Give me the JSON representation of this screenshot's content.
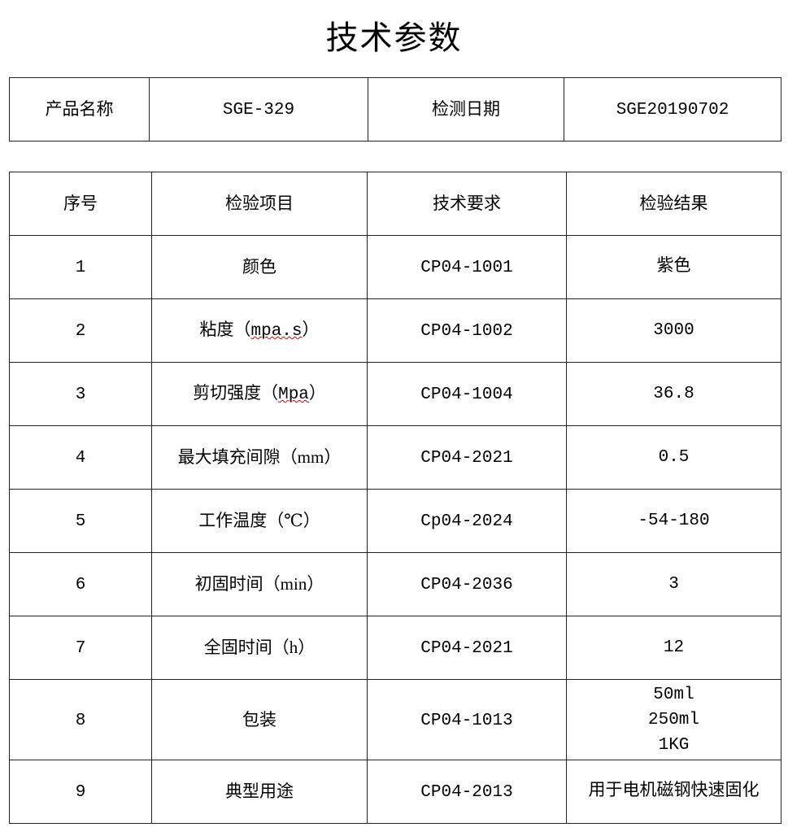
{
  "title": "技术参数",
  "info": {
    "product_name_label": "产品名称",
    "product_name_value": "SGE-329",
    "test_date_label": "检测日期",
    "test_date_value": "SGE20190702"
  },
  "spec": {
    "headers": [
      "序号",
      "检验项目",
      "技术要求",
      "检验结果"
    ],
    "rows": [
      {
        "no": "1",
        "item": "颜色",
        "item_unit": "",
        "req": "CP04-1001",
        "result": [
          "紫色"
        ]
      },
      {
        "no": "2",
        "item": "粘度（",
        "item_unit": "mpa.s",
        "item_close": "）",
        "req": "CP04-1002",
        "result": [
          "3000"
        ]
      },
      {
        "no": "3",
        "item": "剪切强度（",
        "item_unit": "Mpa",
        "item_close": "）",
        "req": "CP04-1004",
        "result": [
          "36.8"
        ]
      },
      {
        "no": "4",
        "item": "最大填充间隙（mm）",
        "item_unit": "",
        "req": "CP04-2021",
        "result": [
          "0.5"
        ]
      },
      {
        "no": "5",
        "item": "工作温度（℃）",
        "item_unit": "",
        "req": "Cp04-2024",
        "result": [
          "-54-180"
        ]
      },
      {
        "no": "6",
        "item": "初固时间（min）",
        "item_unit": "",
        "req": "CP04-2036",
        "result": [
          "3"
        ]
      },
      {
        "no": "7",
        "item": "全固时间（h）",
        "item_unit": "",
        "req": "CP04-2021",
        "result": [
          "12"
        ]
      },
      {
        "no": "8",
        "item": "包装",
        "item_unit": "",
        "req": "CP04-1013",
        "result": [
          "50ml",
          "250ml",
          "1KG"
        ]
      },
      {
        "no": "9",
        "item": "典型用途",
        "item_unit": "",
        "req": "CP04-2013",
        "result": [
          "用于电机磁钢快速固化"
        ]
      }
    ]
  }
}
